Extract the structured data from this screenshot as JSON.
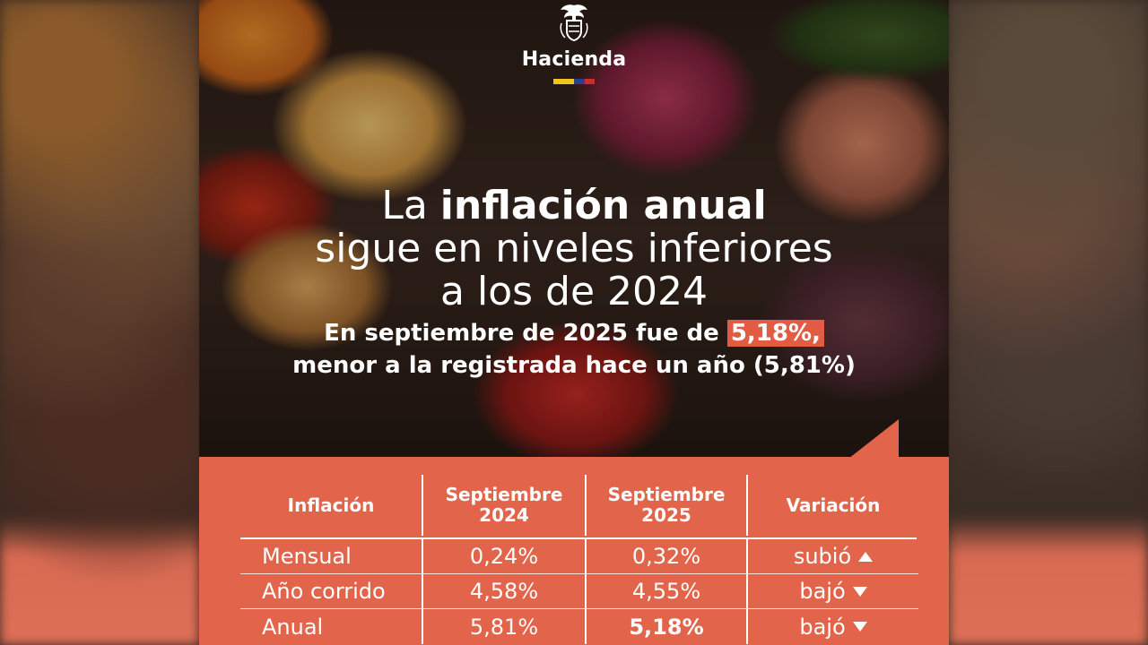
{
  "brand": {
    "name": "Hacienda",
    "flag_colors": [
      "#f4c419",
      "#2b3f8f",
      "#d12b2b"
    ]
  },
  "headline": {
    "line1_prefix": "La ",
    "line1_bold": "inflación anual",
    "line2": "sigue en niveles inferiores",
    "line3": "a los de 2024"
  },
  "subheadline": {
    "line1_prefix": "En septiembre de 2025 fue de ",
    "line1_highlight": "5,18%,",
    "line2": "menor a la registrada hace un año (5,81%)"
  },
  "colors": {
    "accent": "#e2644a",
    "text": "#ffffff"
  },
  "table": {
    "headers": {
      "inflacion": "Inflación",
      "sep2024_line1": "Septiembre",
      "sep2024_line2": "2024",
      "sep2025_line1": "Septiembre",
      "sep2025_line2": "2025",
      "variacion": "Variación"
    },
    "rows": [
      {
        "label": "Mensual",
        "sep2024": "0,24%",
        "sep2025": "0,32%",
        "variacion": "subió",
        "direction": "up"
      },
      {
        "label": "Año corrido",
        "sep2024": "4,58%",
        "sep2025": "4,55%",
        "variacion": "bajó",
        "direction": "down"
      },
      {
        "label": "Anual",
        "sep2024": "5,81%",
        "sep2025": "5,18%",
        "variacion": "bajó",
        "direction": "down"
      }
    ]
  }
}
